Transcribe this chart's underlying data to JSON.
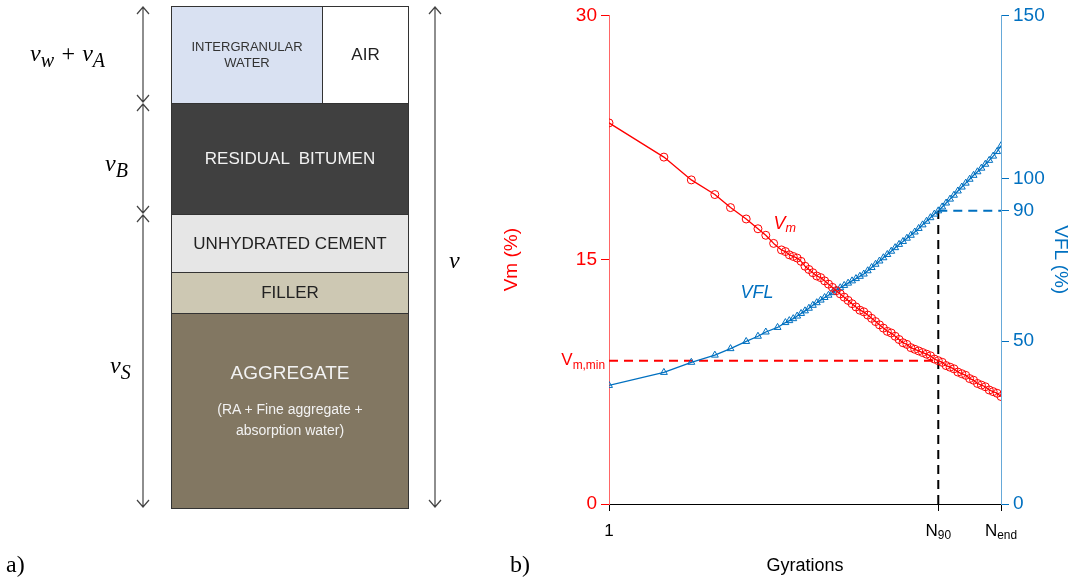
{
  "chart_data": [
    {
      "type": "other",
      "annotations": [
        "INTERGRANULAR WATER",
        "AIR",
        "RESIDUAL  BITUMEN",
        "UNHYDRATED CEMENT",
        "FILLER",
        "AGGREGATE",
        "(RA + Fine aggregate + absorption water)",
        "v$_{w}$ + v$_{A}$",
        "v$_{B}$",
        "v$_{S}$",
        "v",
        "a)"
      ]
    },
    {
      "type": "line",
      "xlabel": "Gyrations",
      "ylabel": "Vm (%)",
      "y2label": "VFL (%)",
      "categories": [
        "1",
        null,
        null,
        null,
        null,
        null,
        null,
        null,
        null,
        null,
        null,
        null,
        null,
        null,
        null,
        null,
        null,
        null,
        null,
        null,
        null,
        null,
        null,
        null,
        null,
        null,
        null,
        null,
        null,
        null,
        null,
        null,
        null,
        null,
        null,
        null,
        null,
        null,
        null,
        null,
        null,
        null,
        null,
        null,
        null,
        null,
        null,
        null,
        null,
        null,
        null,
        null,
        null,
        null,
        null,
        null,
        null,
        null,
        null,
        null,
        null,
        null,
        null,
        null,
        null,
        null,
        null,
        null,
        null,
        null,
        null,
        null,
        null,
        null,
        null,
        null,
        null,
        null,
        null,
        null,
        null,
        null,
        null,
        null,
        "N$_{90}$",
        null,
        null,
        null,
        null,
        null,
        null,
        null,
        null,
        null,
        null,
        null,
        null,
        null,
        null,
        null,
        "N$_{end}$"
      ],
      "ylim": [
        0,
        30
      ],
      "yticks": [
        0,
        15,
        30
      ],
      "y2lim": [
        0,
        150
      ],
      "y2ticks": [
        0,
        50,
        90,
        100,
        150
      ],
      "grid": false,
      "legend": false,
      "series": [
        {
          "name": "V$_{m}$",
          "color": "#ff0000",
          "marker": "circle",
          "values": [
            23.4,
            null,
            null,
            null,
            null,
            null,
            null,
            null,
            null,
            null,
            null,
            null,
            null,
            null,
            21.3,
            null,
            null,
            null,
            null,
            null,
            null,
            19.9,
            null,
            null,
            null,
            null,
            null,
            19.0,
            null,
            null,
            null,
            18.2,
            null,
            null,
            null,
            17.5,
            null,
            null,
            16.9,
            null,
            16.5,
            null,
            16.0,
            null,
            15.6,
            15.5,
            15.3,
            15.2,
            15.1,
            14.9,
            14.6,
            14.4,
            14.2,
            14.0,
            13.9,
            13.7,
            13.5,
            13.3,
            13.1,
            12.9,
            12.7,
            12.5,
            12.3,
            12.1,
            11.9,
            11.8,
            11.6,
            11.4,
            11.2,
            11.0,
            10.8,
            10.6,
            10.5,
            10.3,
            10.1,
            9.9,
            9.8,
            9.6,
            9.5,
            9.4,
            9.3,
            9.2,
            9.1,
            8.9,
            8.8,
            8.7,
            8.5,
            8.4,
            8.3,
            8.1,
            8.0,
            7.9,
            7.7,
            7.6,
            7.4,
            7.3,
            7.2,
            7.0,
            6.9,
            6.8,
            6.6
          ]
        },
        {
          "name": "VFL",
          "color": "#0070c0",
          "marker": "triangle",
          "axis": "y2",
          "values": [
            36.4,
            null,
            null,
            null,
            null,
            null,
            null,
            null,
            null,
            null,
            null,
            null,
            null,
            null,
            40.4,
            null,
            null,
            null,
            null,
            null,
            null,
            43.5,
            null,
            null,
            null,
            null,
            null,
            45.7,
            null,
            null,
            null,
            47.7,
            null,
            null,
            null,
            49.9,
            null,
            null,
            51.5,
            null,
            52.8,
            null,
            null,
            54.2,
            null,
            55.7,
            56.3,
            56.9,
            57.7,
            58.5,
            59.3,
            60.1,
            61.0,
            61.8,
            62.6,
            63.4,
            64.1,
            64.9,
            65.7,
            66.4,
            67.1,
            67.8,
            68.5,
            69.2,
            69.9,
            70.6,
            71.6,
            72.6,
            73.6,
            74.6,
            75.6,
            76.6,
            77.6,
            78.7,
            79.7,
            80.6,
            81.6,
            82.5,
            83.5,
            84.6,
            85.7,
            86.8,
            87.9,
            89.0,
            90.0,
            91.2,
            92.4,
            93.6,
            94.8,
            96.1,
            97.3,
            98.5,
            99.7,
            100.9,
            102.0,
            103.1,
            104.3,
            105.5,
            106.8,
            108.2,
            110.0
          ]
        }
      ],
      "ref_lines": [
        {
          "axis": "x",
          "value": "N$_{90}$",
          "color": "#000000",
          "line_style": "dashed"
        },
        {
          "axis": "y",
          "value": 8.8,
          "label": "V$_{m,min}$",
          "color": "#ff0000",
          "line_style": "dashed"
        },
        {
          "axis": "y2",
          "value": 90,
          "color": "#0070c0",
          "line_style": "dashed"
        }
      ],
      "annotations": [
        "b)"
      ]
    }
  ]
}
